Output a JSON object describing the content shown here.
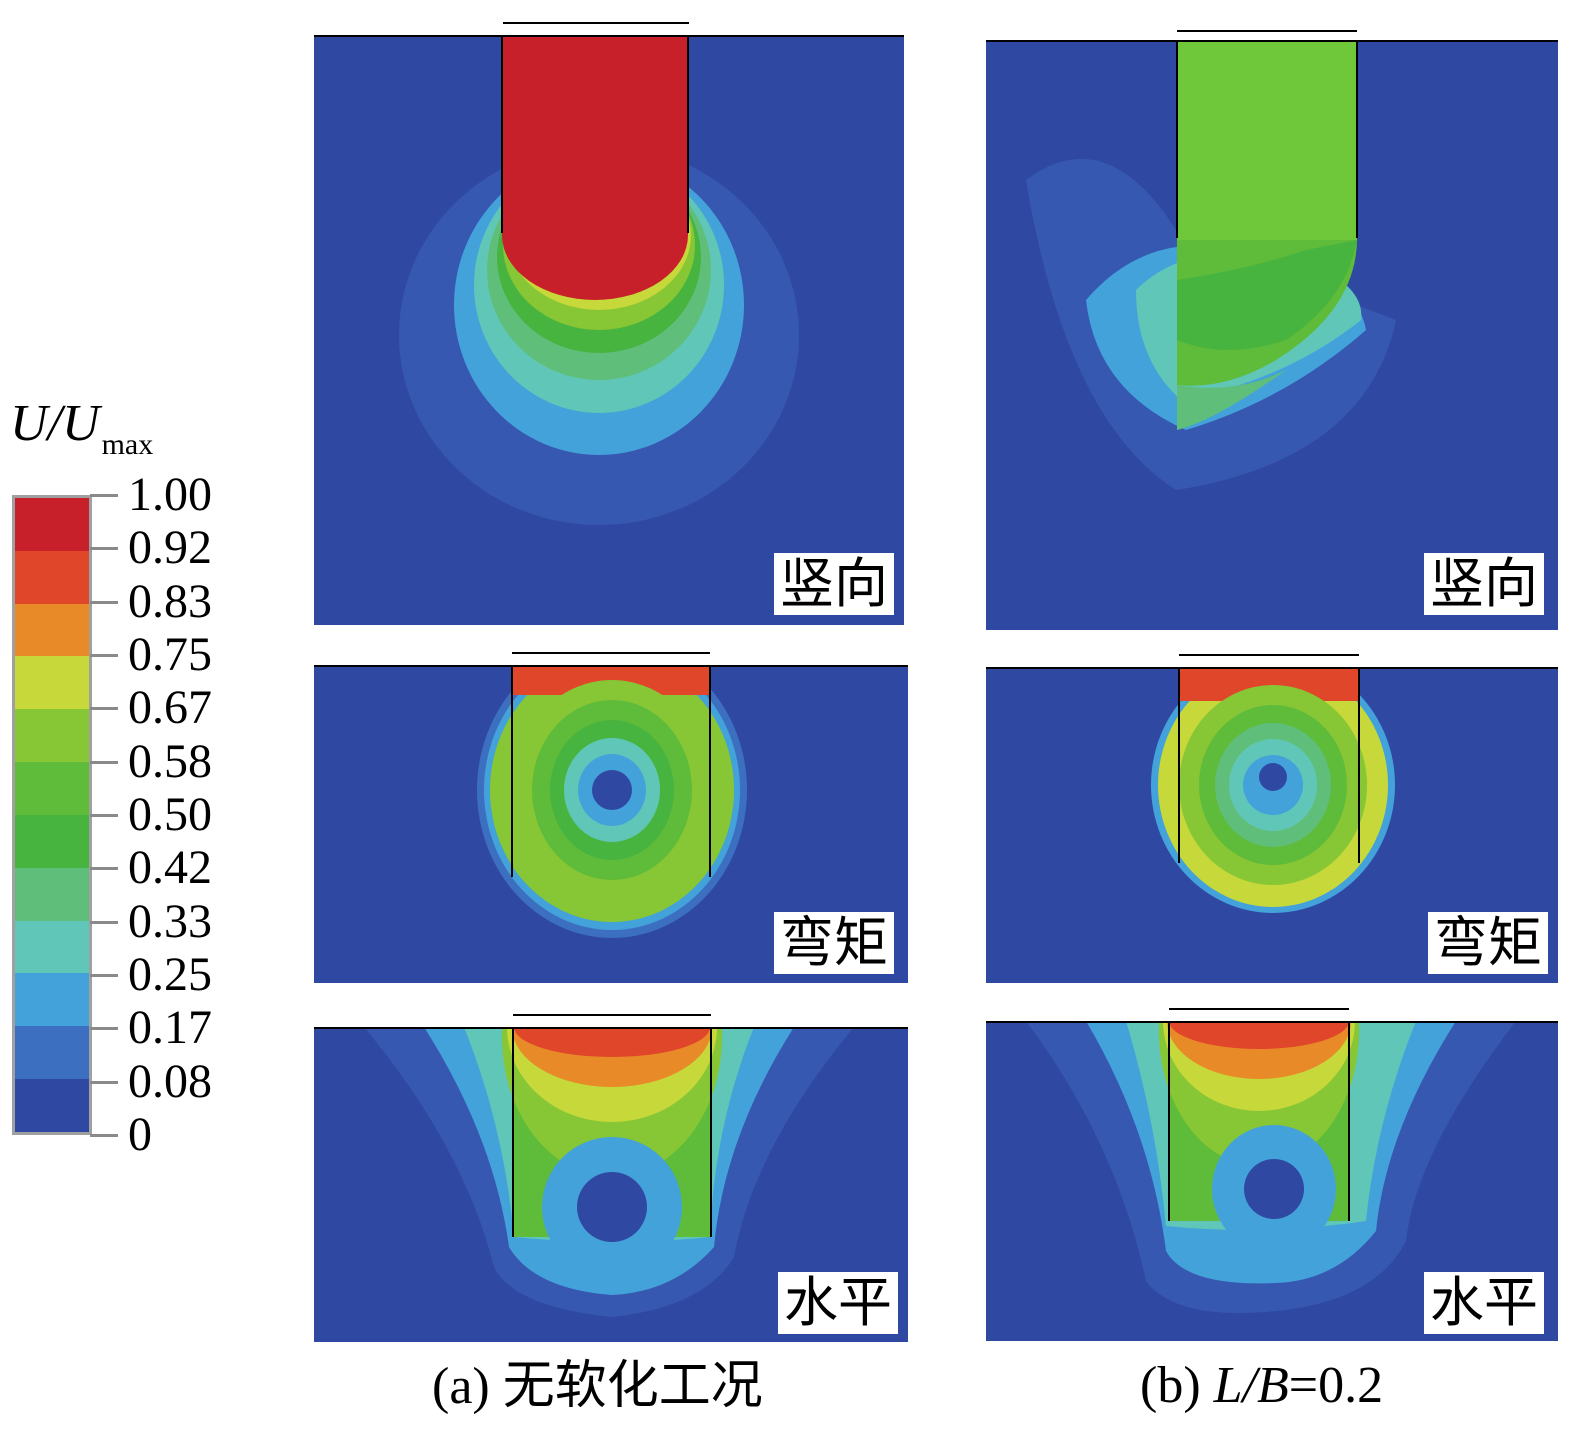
{
  "legend": {
    "title_main": "U/U",
    "title_sub": "max",
    "ticks": [
      "1.00",
      "0.92",
      "0.83",
      "0.75",
      "0.67",
      "0.58",
      "0.50",
      "0.42",
      "0.33",
      "0.25",
      "0.17",
      "0.08",
      "0"
    ],
    "colors": [
      "#c8202a",
      "#e0462a",
      "#e98a28",
      "#c6d83a",
      "#87c634",
      "#5fbb3a",
      "#48b440",
      "#5fbf7a",
      "#60c7b8",
      "#44a2db",
      "#3d6fc0",
      "#2f49a3"
    ]
  },
  "panels": {
    "a_vertical_label": "竖向",
    "a_moment_label": "弯矩",
    "a_horizontal_label": "水平",
    "b_vertical_label": "竖向",
    "b_moment_label": "弯矩",
    "b_horizontal_label": "水平"
  },
  "captions": {
    "a_prefix": "(a) ",
    "a_text": "无软化工况",
    "b_prefix": "(b) ",
    "b_italic": "L/B",
    "b_value": "=0.2"
  }
}
